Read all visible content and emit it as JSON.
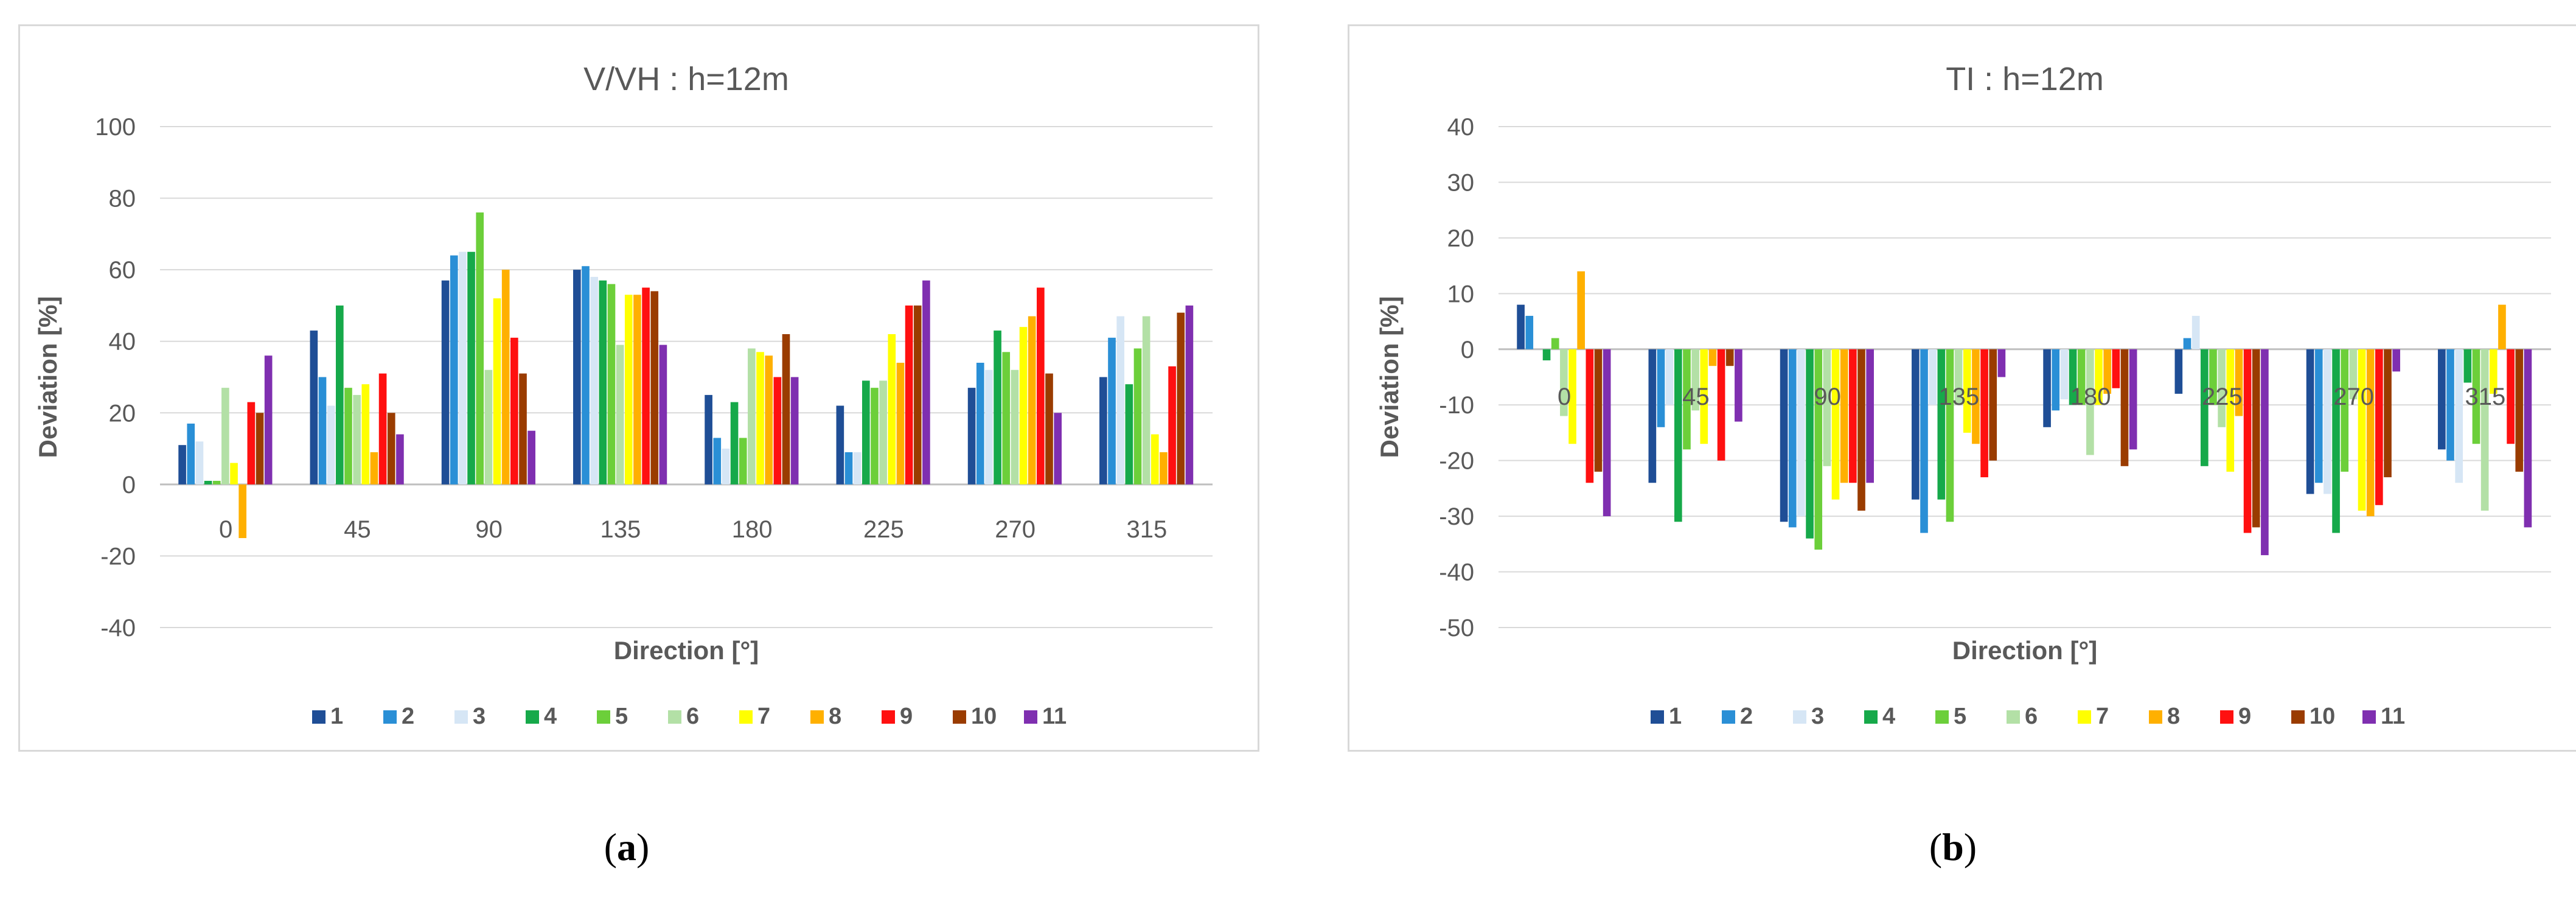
{
  "captions": {
    "a_open": "(",
    "a_letter": "a",
    "a_close": ")",
    "b_open": "(",
    "b_letter": "b",
    "b_close": ")"
  },
  "colors": [
    "#1f4e96",
    "#2a8fd6",
    "#d6e6f5",
    "#16a94a",
    "#6ccf3a",
    "#b3e0a6",
    "#ffff00",
    "#ffb000",
    "#ff1010",
    "#9a3c00",
    "#7f2fb0"
  ],
  "chart_data": [
    {
      "type": "bar",
      "title": "V/VH : h=12m",
      "xlabel": "Direction [°]",
      "ylabel": "Deviation [%]",
      "ylim": [
        -40,
        100
      ],
      "yticks": [
        -40,
        -20,
        0,
        20,
        40,
        60,
        80,
        100
      ],
      "grid": true,
      "legend": "bottom",
      "categories": [
        "0",
        "45",
        "90",
        "135",
        "180",
        "225",
        "270",
        "315"
      ],
      "series": [
        {
          "name": "1",
          "values": [
            11,
            43,
            57,
            60,
            25,
            22,
            27,
            30
          ]
        },
        {
          "name": "2",
          "values": [
            17,
            30,
            64,
            61,
            13,
            9,
            34,
            41
          ]
        },
        {
          "name": "3",
          "values": [
            12,
            22,
            65,
            58,
            10,
            9,
            32,
            47
          ]
        },
        {
          "name": "4",
          "values": [
            1,
            50,
            65,
            57,
            23,
            29,
            43,
            28
          ]
        },
        {
          "name": "5",
          "values": [
            1,
            27,
            76,
            56,
            13,
            27,
            37,
            38
          ]
        },
        {
          "name": "6",
          "values": [
            27,
            25,
            32,
            39,
            38,
            29,
            32,
            47
          ]
        },
        {
          "name": "7",
          "values": [
            6,
            28,
            52,
            53,
            37,
            42,
            44,
            14
          ]
        },
        {
          "name": "8",
          "values": [
            -15,
            9,
            60,
            53,
            36,
            34,
            47,
            9
          ]
        },
        {
          "name": "9",
          "values": [
            23,
            31,
            41,
            55,
            30,
            50,
            55,
            33
          ]
        },
        {
          "name": "10",
          "values": [
            20,
            20,
            31,
            54,
            42,
            50,
            31,
            48
          ]
        },
        {
          "name": "11",
          "values": [
            36,
            14,
            15,
            39,
            30,
            57,
            20,
            50
          ]
        }
      ]
    },
    {
      "type": "bar",
      "title": "TI : h=12m",
      "xlabel": "Direction [°]",
      "ylabel": "Deviation [%]",
      "ylim": [
        -50,
        40
      ],
      "yticks": [
        -50,
        -40,
        -30,
        -20,
        -10,
        0,
        10,
        20,
        30,
        40
      ],
      "grid": true,
      "legend": "bottom",
      "categories": [
        "0",
        "45",
        "90",
        "135",
        "180",
        "225",
        "270",
        "315"
      ],
      "series": [
        {
          "name": "1",
          "values": [
            8,
            -24,
            -31,
            -27,
            -14,
            -8,
            -26,
            -18
          ]
        },
        {
          "name": "2",
          "values": [
            6,
            -14,
            -32,
            -33,
            -11,
            2,
            -24,
            -20
          ]
        },
        {
          "name": "3",
          "values": [
            0,
            -10,
            -30,
            -10,
            -9,
            6,
            -26,
            -24
          ]
        },
        {
          "name": "4",
          "values": [
            -2,
            -31,
            -34,
            -27,
            -10,
            -21,
            -33,
            -6
          ]
        },
        {
          "name": "5",
          "values": [
            2,
            -18,
            -36,
            -31,
            -10,
            -10,
            -22,
            -17
          ]
        },
        {
          "name": "6",
          "values": [
            -12,
            -11,
            -21,
            -10,
            -19,
            -14,
            -9,
            -29
          ]
        },
        {
          "name": "7",
          "values": [
            -17,
            -17,
            -27,
            -15,
            -10,
            -22,
            -29,
            -8
          ]
        },
        {
          "name": "8",
          "values": [
            14,
            -3,
            -24,
            -17,
            -8,
            -12,
            -30,
            8
          ]
        },
        {
          "name": "9",
          "values": [
            -24,
            -20,
            -24,
            -23,
            -7,
            -33,
            -28,
            -17
          ]
        },
        {
          "name": "10",
          "values": [
            -22,
            -3,
            -29,
            -20,
            -21,
            -32,
            -23,
            -22
          ]
        },
        {
          "name": "11",
          "values": [
            -30,
            -13,
            -24,
            -5,
            -18,
            -37,
            -4,
            -32
          ]
        }
      ]
    }
  ]
}
